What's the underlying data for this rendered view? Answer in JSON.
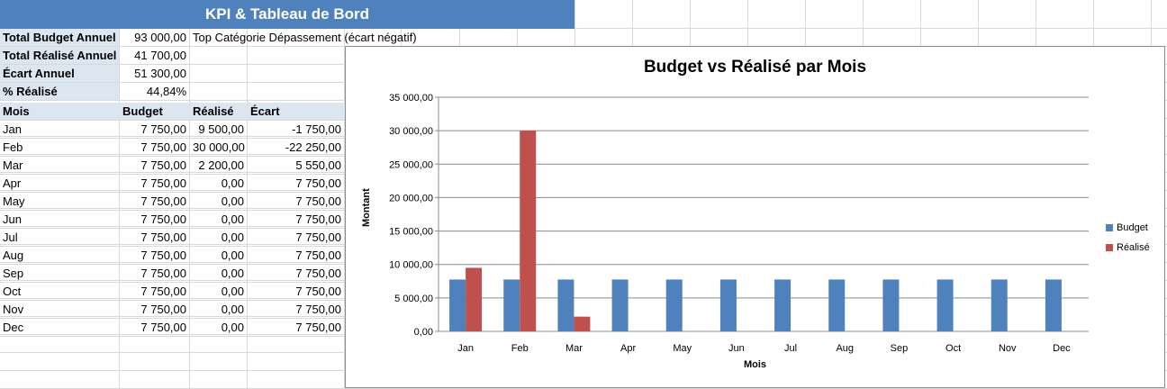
{
  "title": "KPI & Tableau de Bord",
  "kpis": [
    {
      "label": "Total Budget Annuel",
      "value": "93 000,00"
    },
    {
      "label": "Total Réalisé Annuel",
      "value": "41 700,00"
    },
    {
      "label": "Écart Annuel",
      "value": "51 300,00"
    },
    {
      "label": "% Réalisé",
      "value": "44,84%"
    }
  ],
  "top_category_label": "Top Catégorie Dépassement (écart négatif)",
  "table": {
    "headers": [
      "Mois",
      "Budget",
      "Réalisé",
      "Écart"
    ],
    "rows": [
      [
        "Jan",
        "7 750,00",
        "9 500,00",
        "-1 750,00"
      ],
      [
        "Feb",
        "7 750,00",
        "30 000,00",
        "-22 250,00"
      ],
      [
        "Mar",
        "7 750,00",
        "2 200,00",
        "5 550,00"
      ],
      [
        "Apr",
        "7 750,00",
        "0,00",
        "7 750,00"
      ],
      [
        "May",
        "7 750,00",
        "0,00",
        "7 750,00"
      ],
      [
        "Jun",
        "7 750,00",
        "0,00",
        "7 750,00"
      ],
      [
        "Jul",
        "7 750,00",
        "0,00",
        "7 750,00"
      ],
      [
        "Aug",
        "7 750,00",
        "0,00",
        "7 750,00"
      ],
      [
        "Sep",
        "7 750,00",
        "0,00",
        "7 750,00"
      ],
      [
        "Oct",
        "7 750,00",
        "0,00",
        "7 750,00"
      ],
      [
        "Nov",
        "7 750,00",
        "0,00",
        "7 750,00"
      ],
      [
        "Dec",
        "7 750,00",
        "0,00",
        "7 750,00"
      ]
    ]
  },
  "colors": {
    "title_bar": "#4f81bd",
    "header_fill": "#dce6f1",
    "budget": "#4f81bd",
    "realise": "#c0504d"
  },
  "chart_data": {
    "type": "bar",
    "title": "Budget vs Réalisé par Mois",
    "xlabel": "Mois",
    "ylabel": "Montant",
    "categories": [
      "Jan",
      "Feb",
      "Mar",
      "Apr",
      "May",
      "Jun",
      "Jul",
      "Aug",
      "Sep",
      "Oct",
      "Nov",
      "Dec"
    ],
    "series": [
      {
        "name": "Budget",
        "values": [
          7750,
          7750,
          7750,
          7750,
          7750,
          7750,
          7750,
          7750,
          7750,
          7750,
          7750,
          7750
        ]
      },
      {
        "name": "Réalisé",
        "values": [
          9500,
          30000,
          2200,
          0,
          0,
          0,
          0,
          0,
          0,
          0,
          0,
          0
        ]
      }
    ],
    "ylim": [
      0,
      35000
    ],
    "yticks": [
      "0,00",
      "5 000,00",
      "10 000,00",
      "15 000,00",
      "20 000,00",
      "25 000,00",
      "30 000,00",
      "35 000,00"
    ],
    "grid": true,
    "legend": "right"
  }
}
